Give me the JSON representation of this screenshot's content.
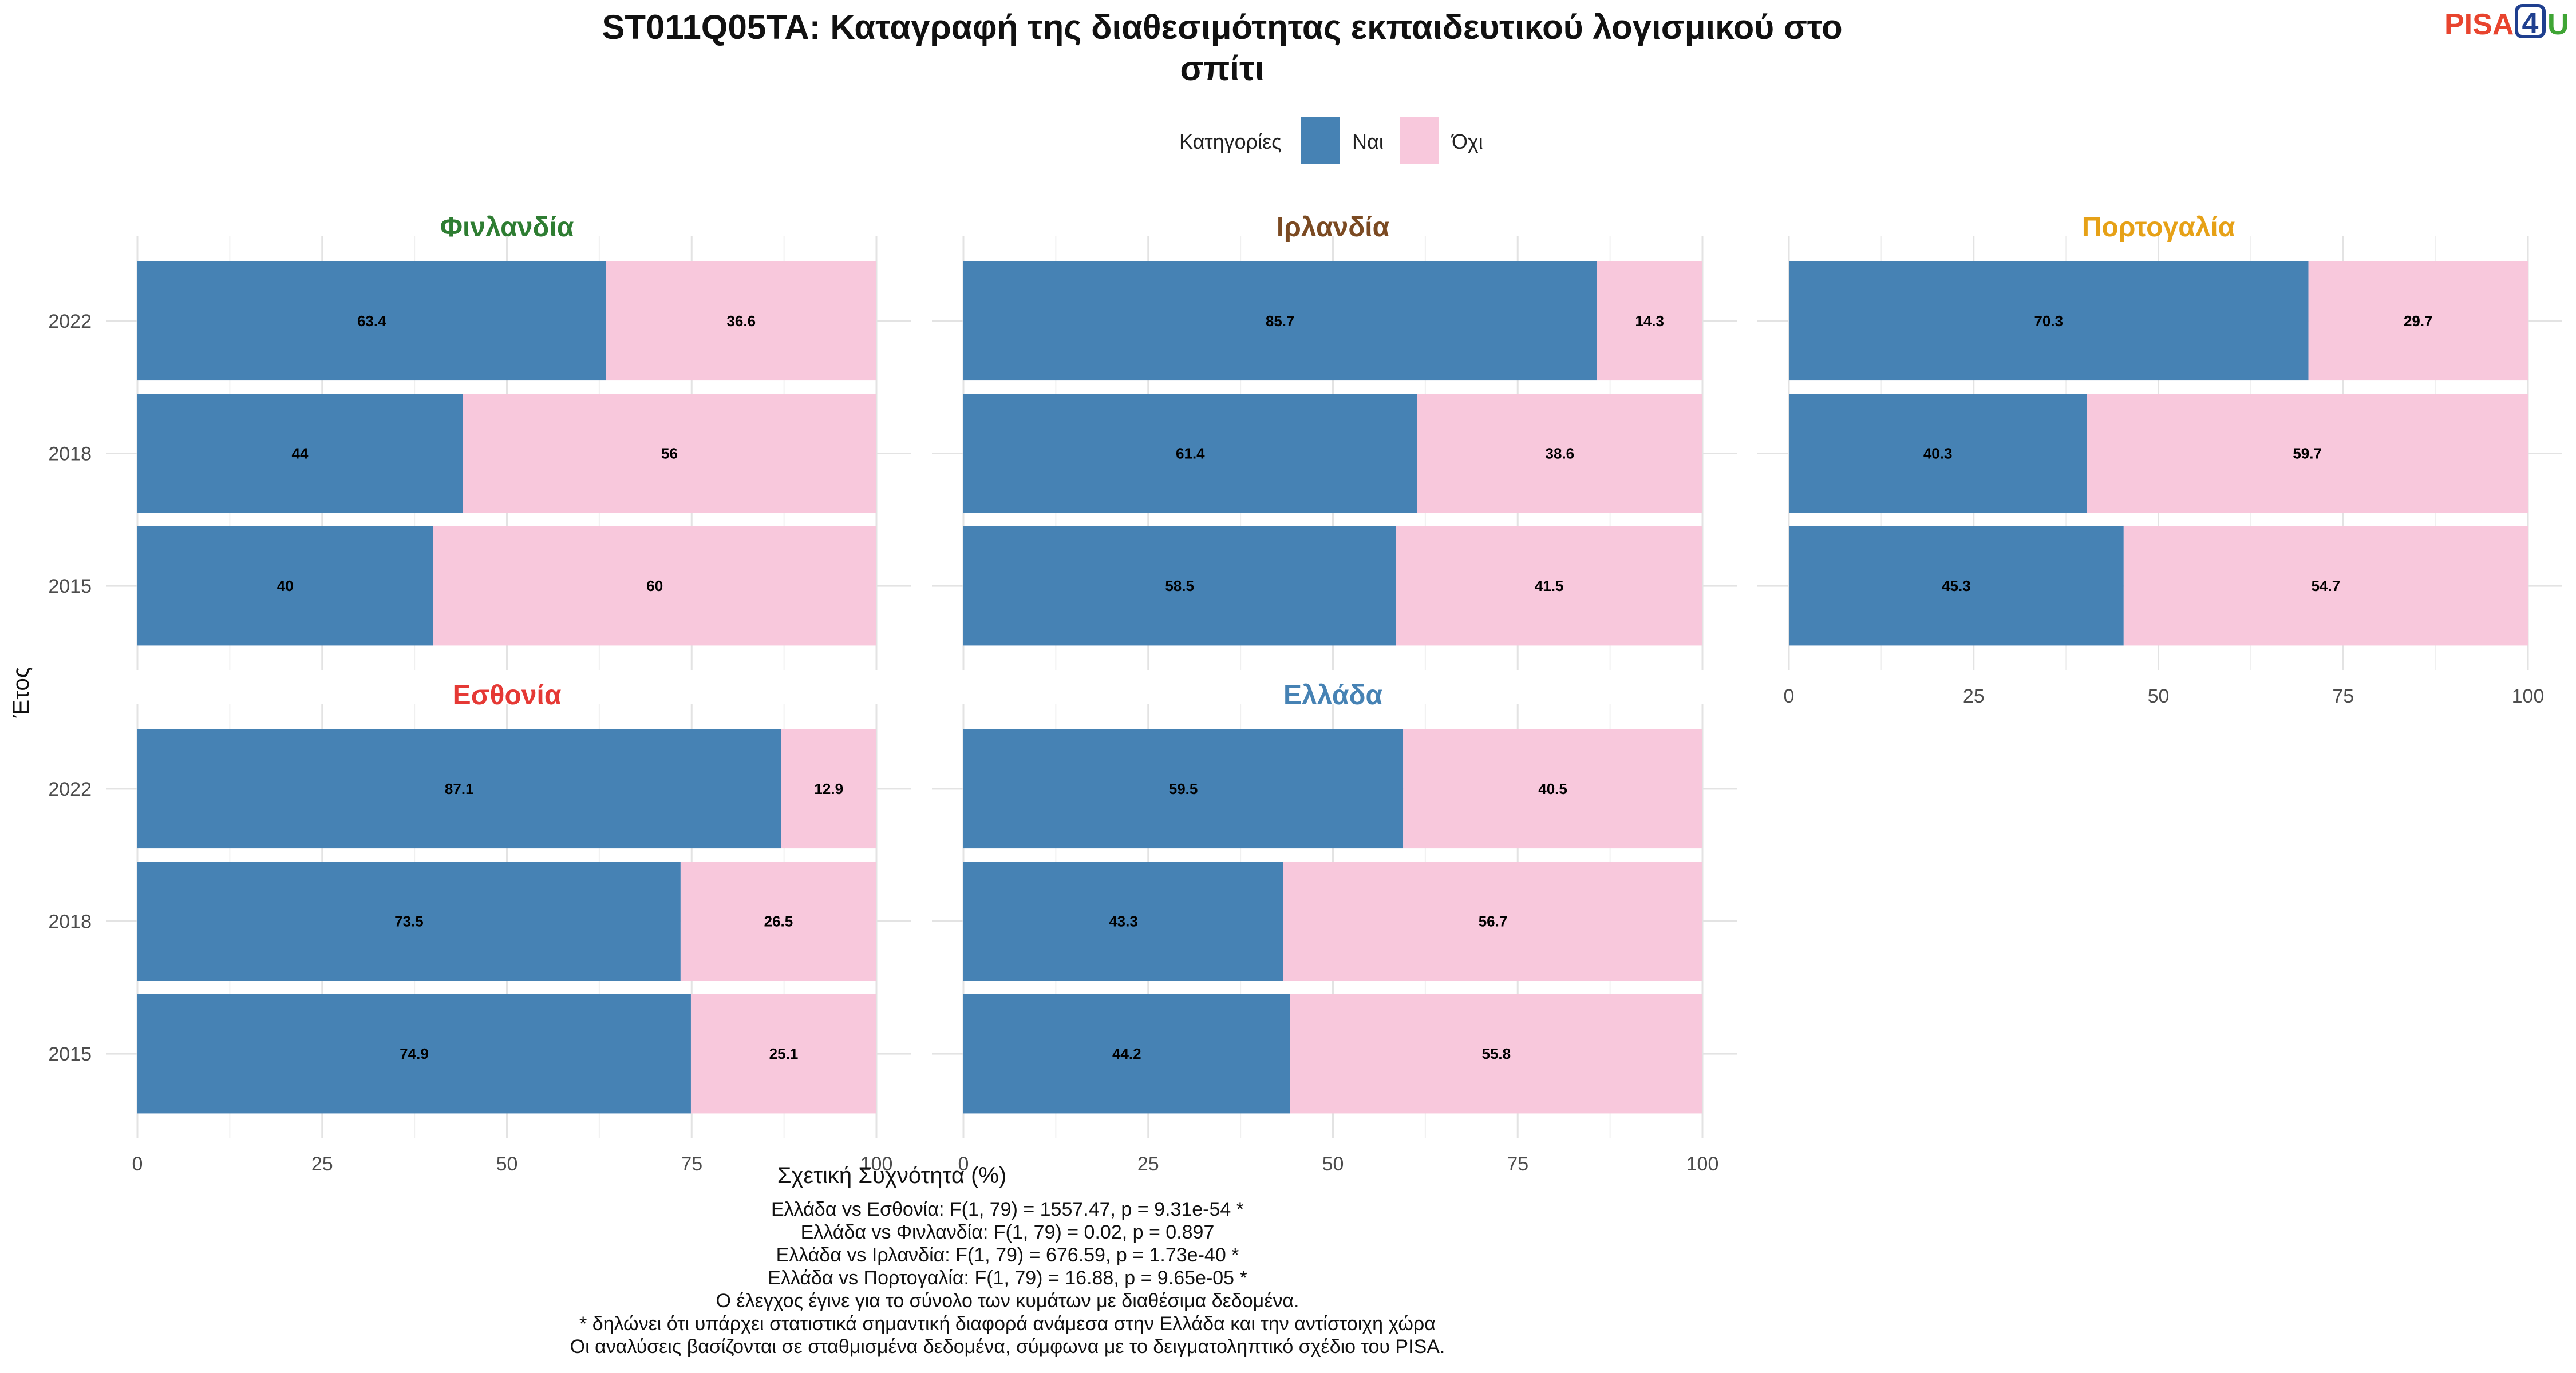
{
  "chart_data": {
    "type": "bar",
    "orientation": "horizontal",
    "stacked": true,
    "title": "ST011Q05TA: Καταγραφή της διαθεσιμότητας εκπαιδευτικού λογισμικού στο",
    "title_line2": "σπίτι",
    "xlabel": "Σχετική Συχνότητα (%)",
    "ylabel": "Έτος",
    "xlim": [
      0,
      100
    ],
    "x_ticks": [
      "0",
      "25",
      "50",
      "75",
      "100"
    ],
    "grid": true,
    "legend": {
      "title": "Κατηγορίες",
      "position": "top",
      "items": [
        {
          "name": "Ναι",
          "color": "#4682B4"
        },
        {
          "name": "Όχι",
          "color": "#F8C8DC"
        }
      ]
    },
    "categories": [
      "2022",
      "2018",
      "2015"
    ],
    "panels": [
      {
        "title": "Φινλανδία",
        "color": "#2E7D32",
        "series": [
          {
            "name": "Ναι",
            "values": [
              63.4,
              44,
              40
            ]
          },
          {
            "name": "Όχι",
            "values": [
              36.6,
              56,
              60
            ]
          }
        ]
      },
      {
        "title": "Ιρλανδία",
        "color": "#7B4A22",
        "series": [
          {
            "name": "Ναι",
            "values": [
              85.7,
              61.4,
              58.5
            ]
          },
          {
            "name": "Όχι",
            "values": [
              14.3,
              38.6,
              41.5
            ]
          }
        ]
      },
      {
        "title": "Πορτογαλία",
        "color": "#E6A117",
        "series": [
          {
            "name": "Ναι",
            "values": [
              70.3,
              40.3,
              45.3
            ]
          },
          {
            "name": "Όχι",
            "values": [
              29.7,
              59.7,
              54.7
            ]
          }
        ]
      },
      {
        "title": "Εσθονία",
        "color": "#E53935",
        "series": [
          {
            "name": "Ναι",
            "values": [
              87.1,
              73.5,
              74.9
            ]
          },
          {
            "name": "Όχι",
            "values": [
              12.9,
              26.5,
              25.1
            ]
          }
        ]
      },
      {
        "title": "Ελλάδα",
        "color": "#4682B4",
        "series": [
          {
            "name": "Ναι",
            "values": [
              59.5,
              43.3,
              44.2
            ]
          },
          {
            "name": "Όχι",
            "values": [
              40.5,
              56.7,
              55.8
            ]
          }
        ]
      }
    ]
  },
  "notes": [
    "Ελλάδα vs Εσθονία: F(1, 79) = 1557.47, p = 9.31e-54 *",
    "Ελλάδα vs Φινλανδία: F(1, 79) = 0.02, p = 0.897",
    "Ελλάδα vs Ιρλανδία: F(1, 79) = 676.59, p = 1.73e-40 *",
    "Ελλάδα vs Πορτογαλία: F(1, 79) = 16.88, p = 9.65e-05 *",
    "Ο έλεγχος έγινε για το σύνολο των κυμάτων με διαθέσιμα δεδομένα.",
    "* δηλώνει ότι υπάρχει στατιστικά σημαντική διαφορά ανάμεσα στην Ελλάδα και την αντίστοιχη χώρα",
    "Οι αναλύσεις βασίζονται σε σταθμισμένα δεδομένα, σύμφωνα με το δειγματοληπτικό σχέδιο του PISA."
  ],
  "logo": {
    "part1": "PISA",
    "part2": "4",
    "part3": "U",
    "color1": "#E8442E",
    "color2": "#1F3F8F",
    "color3": "#3FA535"
  }
}
